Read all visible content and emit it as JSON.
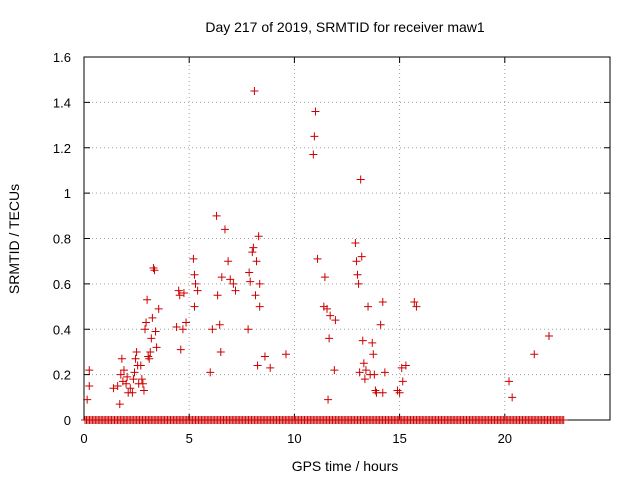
{
  "chart_data": {
    "type": "scatter",
    "title": "Day 217 of 2019, SRMTID for receiver maw1",
    "xlabel": "GPS time / hours",
    "ylabel": "SRMTID / TECUs",
    "xlim": [
      0,
      25
    ],
    "ylim": [
      0,
      1.6
    ],
    "xticks": [
      0,
      5,
      10,
      15,
      20
    ],
    "yticks": [
      0,
      0.2,
      0.4,
      0.6,
      0.8,
      1,
      1.2,
      1.4,
      1.6
    ],
    "ytick_labels": [
      "0",
      "0.2",
      "0.4",
      "0.6",
      "0.8",
      "1",
      "1.2",
      "1.4",
      "1.6"
    ],
    "xtick_labels": [
      "0",
      "5",
      "10",
      "15",
      "20"
    ],
    "marker": "+",
    "color": "#cc0000",
    "series": [
      {
        "name": "SRMTID",
        "points": [
          [
            0.15,
            0.09
          ],
          [
            0.25,
            0.15
          ],
          [
            0.25,
            0.22
          ],
          [
            1.4,
            0.14
          ],
          [
            1.6,
            0.15
          ],
          [
            1.7,
            0.07
          ],
          [
            1.75,
            0.2
          ],
          [
            1.8,
            0.27
          ],
          [
            1.85,
            0.17
          ],
          [
            1.9,
            0.22
          ],
          [
            2.0,
            0.16
          ],
          [
            2.05,
            0.19
          ],
          [
            2.1,
            0.12
          ],
          [
            2.2,
            0.14
          ],
          [
            2.3,
            0.12
          ],
          [
            2.35,
            0.18
          ],
          [
            2.4,
            0.21
          ],
          [
            2.45,
            0.27
          ],
          [
            2.5,
            0.3
          ],
          [
            2.55,
            0.24
          ],
          [
            2.6,
            0.16
          ],
          [
            2.7,
            0.24
          ],
          [
            2.75,
            0.18
          ],
          [
            2.8,
            0.16
          ],
          [
            2.85,
            0.13
          ],
          [
            2.9,
            0.4
          ],
          [
            2.95,
            0.43
          ],
          [
            3.0,
            0.53
          ],
          [
            3.05,
            0.28
          ],
          [
            3.1,
            0.27
          ],
          [
            3.15,
            0.3
          ],
          [
            3.2,
            0.36
          ],
          [
            3.25,
            0.45
          ],
          [
            3.3,
            0.67
          ],
          [
            3.35,
            0.66
          ],
          [
            3.4,
            0.39
          ],
          [
            3.45,
            0.32
          ],
          [
            3.55,
            0.49
          ],
          [
            4.4,
            0.41
          ],
          [
            4.5,
            0.57
          ],
          [
            4.55,
            0.55
          ],
          [
            4.6,
            0.31
          ],
          [
            4.7,
            0.4
          ],
          [
            4.75,
            0.56
          ],
          [
            4.85,
            0.43
          ],
          [
            5.2,
            0.71
          ],
          [
            5.25,
            0.64
          ],
          [
            5.3,
            0.6
          ],
          [
            5.4,
            0.57
          ],
          [
            5.25,
            0.5
          ],
          [
            6.0,
            0.21
          ],
          [
            6.1,
            0.4
          ],
          [
            6.3,
            0.9
          ],
          [
            6.35,
            0.55
          ],
          [
            6.45,
            0.42
          ],
          [
            6.5,
            0.3
          ],
          [
            6.55,
            0.63
          ],
          [
            6.7,
            0.84
          ],
          [
            6.85,
            0.7
          ],
          [
            6.95,
            0.62
          ],
          [
            7.1,
            0.6
          ],
          [
            7.2,
            0.57
          ],
          [
            7.8,
            0.4
          ],
          [
            7.85,
            0.65
          ],
          [
            7.9,
            0.61
          ],
          [
            8.0,
            0.74
          ],
          [
            8.05,
            0.76
          ],
          [
            8.1,
            1.45
          ],
          [
            8.15,
            0.55
          ],
          [
            8.2,
            0.7
          ],
          [
            8.25,
            0.24
          ],
          [
            8.3,
            0.81
          ],
          [
            8.35,
            0.5
          ],
          [
            8.35,
            0.6
          ],
          [
            8.6,
            0.28
          ],
          [
            8.85,
            0.23
          ],
          [
            9.6,
            0.29
          ],
          [
            10.9,
            1.17
          ],
          [
            10.95,
            1.25
          ],
          [
            11.0,
            1.36
          ],
          [
            11.1,
            0.71
          ],
          [
            11.4,
            0.5
          ],
          [
            11.45,
            0.63
          ],
          [
            11.55,
            0.49
          ],
          [
            11.6,
            0.09
          ],
          [
            11.65,
            0.36
          ],
          [
            11.7,
            0.46
          ],
          [
            11.9,
            0.22
          ],
          [
            11.95,
            0.44
          ],
          [
            12.9,
            0.78
          ],
          [
            12.95,
            0.7
          ],
          [
            13.0,
            0.64
          ],
          [
            13.05,
            0.6
          ],
          [
            13.1,
            0.21
          ],
          [
            13.15,
            1.06
          ],
          [
            13.2,
            0.72
          ],
          [
            13.25,
            0.35
          ],
          [
            13.3,
            0.25
          ],
          [
            13.35,
            0.18
          ],
          [
            13.4,
            0.22
          ],
          [
            13.5,
            0.5
          ],
          [
            13.6,
            0.2
          ],
          [
            13.7,
            0.34
          ],
          [
            13.75,
            0.29
          ],
          [
            13.8,
            0.2
          ],
          [
            13.85,
            0.13
          ],
          [
            13.9,
            0.12
          ],
          [
            14.1,
            0.42
          ],
          [
            14.2,
            0.12
          ],
          [
            14.3,
            0.21
          ],
          [
            14.2,
            0.52
          ],
          [
            14.9,
            0.13
          ],
          [
            15.0,
            0.12
          ],
          [
            15.1,
            0.23
          ],
          [
            15.15,
            0.17
          ],
          [
            15.3,
            0.24
          ],
          [
            15.7,
            0.52
          ],
          [
            15.8,
            0.5
          ],
          [
            20.2,
            0.17
          ],
          [
            20.35,
            0.1
          ],
          [
            21.4,
            0.29
          ],
          [
            22.1,
            0.37
          ]
        ],
        "zero_baseline_range": [
          0.05,
          22.8
        ]
      }
    ]
  }
}
